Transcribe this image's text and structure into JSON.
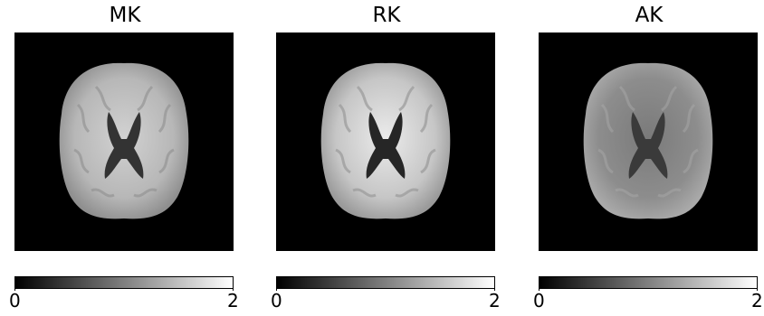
{
  "panels": [
    {
      "title": "MK",
      "colorbar": {
        "min_label": "0",
        "max_label": "2"
      },
      "colors": {
        "brain": "#b7b7b7",
        "wm": "#d2d2d2",
        "gm": "#8f8f8f",
        "ventricle": "#333333"
      }
    },
    {
      "title": "RK",
      "colorbar": {
        "min_label": "0",
        "max_label": "2"
      },
      "colors": {
        "brain": "#c6c6c6",
        "wm": "#ebebeb",
        "gm": "#9a9a9a",
        "ventricle": "#262626"
      }
    },
    {
      "title": "AK",
      "colorbar": {
        "min_label": "0",
        "max_label": "2"
      },
      "colors": {
        "brain": "#8d8d8d",
        "wm": "#7a7a7a",
        "gm": "#a9a9a9",
        "ventricle": "#3a3a3a"
      }
    }
  ],
  "colormap": {
    "start": "#000000",
    "end": "#ffffff"
  }
}
